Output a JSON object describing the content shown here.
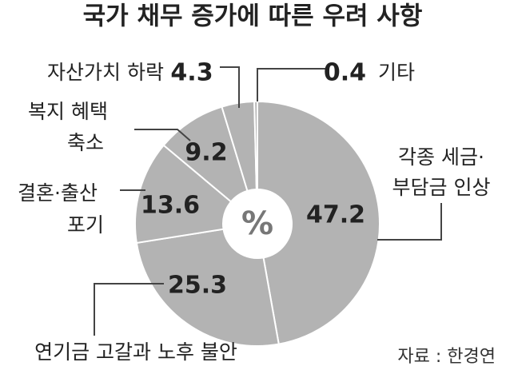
{
  "chart_data": {
    "type": "donut",
    "title": "국가 채무 증가에 따른 우려 사항",
    "center_label": "%",
    "source": "자료 : 한경연",
    "categories": [
      [
        "각종 세금·",
        "부담금 인상"
      ],
      [
        "연기금 고갈과 노후 불안"
      ],
      [
        "결혼·출산",
        "포기"
      ],
      [
        "복지 혜택",
        "축소"
      ],
      [
        "자산가치 하락"
      ],
      [
        "기타"
      ]
    ],
    "values": [
      47.2,
      25.3,
      13.6,
      9.2,
      4.3,
      0.4
    ],
    "color": "#b3b3b3"
  }
}
